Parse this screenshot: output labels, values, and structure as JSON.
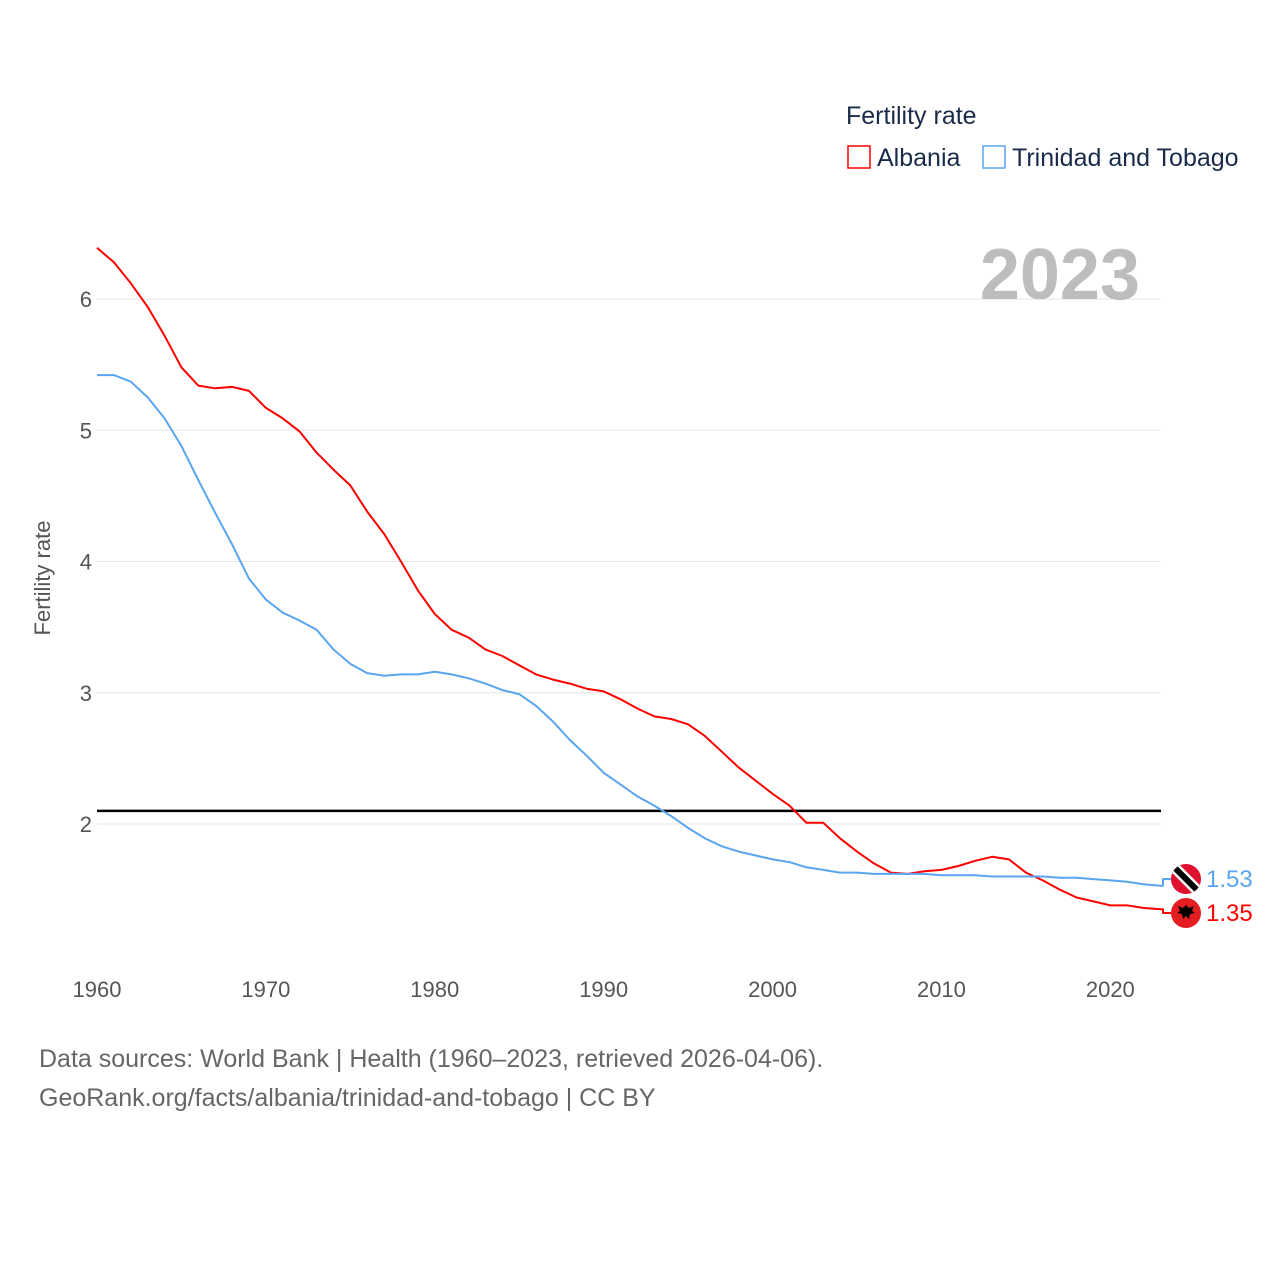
{
  "chart_data": {
    "type": "line",
    "legend_title": "Fertility rate",
    "legend_position": "top-right",
    "ylabel": "Fertility rate",
    "xlabel": "",
    "year_label": "2023",
    "xlim": [
      1960,
      2023
    ],
    "ylim": [
      1.1,
      6.45
    ],
    "x_ticks": [
      1960,
      1970,
      1980,
      1990,
      2000,
      2010,
      2020
    ],
    "y_ticks": [
      2,
      3,
      4,
      5,
      6
    ],
    "grid": true,
    "reference_line": 2.1,
    "x": [
      1960,
      1961,
      1962,
      1963,
      1964,
      1965,
      1966,
      1967,
      1968,
      1969,
      1970,
      1971,
      1972,
      1973,
      1974,
      1975,
      1976,
      1977,
      1978,
      1979,
      1980,
      1981,
      1982,
      1983,
      1984,
      1985,
      1986,
      1987,
      1988,
      1989,
      1990,
      1991,
      1992,
      1993,
      1994,
      1995,
      1996,
      1997,
      1998,
      1999,
      2000,
      2001,
      2002,
      2003,
      2004,
      2005,
      2006,
      2007,
      2008,
      2009,
      2010,
      2011,
      2012,
      2013,
      2014,
      2015,
      2016,
      2017,
      2018,
      2019,
      2020,
      2021,
      2022,
      2023
    ],
    "series": [
      {
        "name": "Albania",
        "color": "#ff0000",
        "end_label": "1.35",
        "flag": "albania-flag",
        "values": [
          6.39,
          6.28,
          6.12,
          5.94,
          5.72,
          5.48,
          5.34,
          5.32,
          5.33,
          5.3,
          5.17,
          5.09,
          4.99,
          4.83,
          4.7,
          4.58,
          4.38,
          4.21,
          4.0,
          3.78,
          3.6,
          3.48,
          3.42,
          3.33,
          3.28,
          3.21,
          3.14,
          3.1,
          3.07,
          3.03,
          3.01,
          2.95,
          2.88,
          2.82,
          2.8,
          2.76,
          2.67,
          2.55,
          2.43,
          2.33,
          2.23,
          2.14,
          2.01,
          2.01,
          1.89,
          1.79,
          1.7,
          1.63,
          1.62,
          1.64,
          1.65,
          1.68,
          1.72,
          1.75,
          1.73,
          1.63,
          1.57,
          1.5,
          1.44,
          1.41,
          1.38,
          1.38,
          1.36,
          1.35
        ]
      },
      {
        "name": "Trinidad and Tobago",
        "color": "#5aa5ef",
        "end_label": "1.53",
        "flag": "trinidad-flag",
        "values": [
          5.42,
          5.42,
          5.37,
          5.25,
          5.09,
          4.88,
          4.62,
          4.37,
          4.13,
          3.87,
          3.71,
          3.61,
          3.55,
          3.48,
          3.33,
          3.22,
          3.15,
          3.13,
          3.14,
          3.14,
          3.16,
          3.14,
          3.11,
          3.07,
          3.02,
          2.99,
          2.9,
          2.78,
          2.64,
          2.52,
          2.39,
          2.3,
          2.21,
          2.14,
          2.06,
          1.97,
          1.89,
          1.83,
          1.79,
          1.76,
          1.73,
          1.71,
          1.67,
          1.65,
          1.63,
          1.63,
          1.62,
          1.62,
          1.62,
          1.62,
          1.61,
          1.61,
          1.61,
          1.6,
          1.6,
          1.6,
          1.6,
          1.59,
          1.59,
          1.58,
          1.57,
          1.56,
          1.54,
          1.53
        ]
      }
    ]
  },
  "footer": {
    "line1": "Data sources: World Bank | Health (1960–2023, retrieved 2026-04-06).",
    "line2": "GeoRank.org/facts/albania/trinidad-and-tobago | CC BY"
  }
}
